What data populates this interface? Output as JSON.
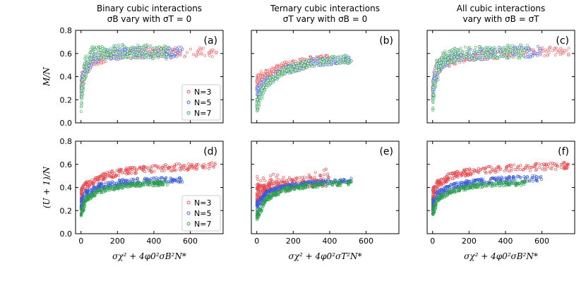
{
  "chart_data": {
    "type": "scatter",
    "column_titles": [
      [
        "Binary cubic interactions",
        "σB vary with σT = 0"
      ],
      [
        "Ternary cubic interactions",
        "σT vary with σB = 0"
      ],
      [
        "All cubic interactions",
        "vary with σB = σT"
      ]
    ],
    "x_labels": [
      "σχ² + 4φ0²σB²N*",
      "σχ² + 4φ0²σT²N*",
      "σχ² + 4φ0²σB²N*"
    ],
    "y_labels": [
      "M/N",
      "(U + 1)/N"
    ],
    "panel_labels": [
      "(a)",
      "(b)",
      "(c)",
      "(d)",
      "(e)",
      "(f)"
    ],
    "x_ticks": [
      "0",
      "200",
      "400",
      "600"
    ],
    "y_ticks": [
      "0.0",
      "0.2",
      "0.4",
      "0.6",
      "0.8"
    ],
    "xlim": [
      -30,
      780
    ],
    "ylim": [
      0.0,
      0.8
    ],
    "series_colors": [
      "#e8474c",
      "#3b5bdb",
      "#2e9e4f"
    ],
    "legend": {
      "placement": "lower-right",
      "entries": [
        "N=3",
        "N=5",
        "N=7"
      ]
    },
    "panels": [
      {
        "label": "(a)",
        "row": 0,
        "col": 0,
        "fill": "light",
        "series": [
          {
            "name": "N=3",
            "xmax": 750,
            "trend": [
              [
                0,
                0.34
              ],
              [
                20,
                0.44
              ],
              [
                60,
                0.52
              ],
              [
                150,
                0.58
              ],
              [
                300,
                0.6
              ],
              [
                500,
                0.61
              ],
              [
                750,
                0.61
              ]
            ],
            "spread": 0.04
          },
          {
            "name": "N=5",
            "xmax": 560,
            "trend": [
              [
                0,
                0.3
              ],
              [
                20,
                0.45
              ],
              [
                60,
                0.55
              ],
              [
                150,
                0.6
              ],
              [
                300,
                0.61
              ],
              [
                560,
                0.61
              ]
            ],
            "spread": 0.05
          },
          {
            "name": "N=7",
            "xmax": 480,
            "trend": [
              [
                0,
                0.2
              ],
              [
                20,
                0.48
              ],
              [
                60,
                0.6
              ],
              [
                150,
                0.62
              ],
              [
                300,
                0.62
              ],
              [
                480,
                0.61
              ]
            ],
            "spread": 0.06
          }
        ]
      },
      {
        "label": "(b)",
        "row": 0,
        "col": 1,
        "fill": "light",
        "series": [
          {
            "name": "N=3",
            "xmax": 400,
            "trend": [
              [
                0,
                0.35
              ],
              [
                50,
                0.42
              ],
              [
                150,
                0.49
              ],
              [
                300,
                0.54
              ],
              [
                400,
                0.56
              ]
            ],
            "spread": 0.035
          },
          {
            "name": "N=5",
            "xmax": 520,
            "trend": [
              [
                0,
                0.25
              ],
              [
                50,
                0.36
              ],
              [
                150,
                0.45
              ],
              [
                300,
                0.52
              ],
              [
                520,
                0.55
              ]
            ],
            "spread": 0.035
          },
          {
            "name": "N=7",
            "xmax": 520,
            "trend": [
              [
                0,
                0.15
              ],
              [
                50,
                0.33
              ],
              [
                150,
                0.45
              ],
              [
                300,
                0.52
              ],
              [
                520,
                0.56
              ]
            ],
            "spread": 0.035
          }
        ]
      },
      {
        "label": "(c)",
        "row": 0,
        "col": 2,
        "fill": "light",
        "series": [
          {
            "name": "N=3",
            "xmax": 750,
            "trend": [
              [
                0,
                0.34
              ],
              [
                20,
                0.44
              ],
              [
                60,
                0.51
              ],
              [
                150,
                0.56
              ],
              [
                300,
                0.59
              ],
              [
                500,
                0.61
              ],
              [
                750,
                0.62
              ]
            ],
            "spread": 0.04
          },
          {
            "name": "N=5",
            "xmax": 600,
            "trend": [
              [
                0,
                0.28
              ],
              [
                20,
                0.44
              ],
              [
                60,
                0.53
              ],
              [
                150,
                0.58
              ],
              [
                300,
                0.6
              ],
              [
                600,
                0.62
              ]
            ],
            "spread": 0.05
          },
          {
            "name": "N=7",
            "xmax": 520,
            "trend": [
              [
                0,
                0.2
              ],
              [
                20,
                0.45
              ],
              [
                60,
                0.56
              ],
              [
                150,
                0.6
              ],
              [
                300,
                0.61
              ],
              [
                520,
                0.62
              ]
            ],
            "spread": 0.06
          }
        ]
      },
      {
        "label": "(d)",
        "row": 1,
        "col": 0,
        "fill": "dark",
        "series": [
          {
            "name": "N=3",
            "xmax": 750,
            "trend": [
              [
                0,
                0.33
              ],
              [
                30,
                0.42
              ],
              [
                100,
                0.49
              ],
              [
                250,
                0.54
              ],
              [
                450,
                0.57
              ],
              [
                750,
                0.59
              ]
            ],
            "spread": 0.03
          },
          {
            "name": "N=5",
            "xmax": 560,
            "trend": [
              [
                0,
                0.25
              ],
              [
                30,
                0.35
              ],
              [
                100,
                0.41
              ],
              [
                250,
                0.45
              ],
              [
                400,
                0.46
              ],
              [
                560,
                0.47
              ]
            ],
            "spread": 0.025
          },
          {
            "name": "N=7",
            "xmax": 480,
            "trend": [
              [
                0,
                0.18
              ],
              [
                30,
                0.3
              ],
              [
                100,
                0.37
              ],
              [
                250,
                0.42
              ],
              [
                480,
                0.44
              ]
            ],
            "spread": 0.02
          }
        ]
      },
      {
        "label": "(e)",
        "row": 1,
        "col": 1,
        "fill": "dark",
        "series": [
          {
            "name": "N=3",
            "xmax": 400,
            "trend": [
              [
                0,
                0.34
              ],
              [
                50,
                0.39
              ],
              [
                150,
                0.42
              ],
              [
                300,
                0.45
              ],
              [
                400,
                0.46
              ]
            ],
            "spread": 0.05
          },
          {
            "name": "N=5",
            "xmax": 520,
            "trend": [
              [
                0,
                0.24
              ],
              [
                50,
                0.35
              ],
              [
                150,
                0.41
              ],
              [
                300,
                0.44
              ],
              [
                520,
                0.46
              ]
            ],
            "spread": 0.02
          },
          {
            "name": "N=7",
            "xmax": 520,
            "trend": [
              [
                0,
                0.15
              ],
              [
                50,
                0.3
              ],
              [
                150,
                0.38
              ],
              [
                300,
                0.42
              ],
              [
                520,
                0.44
              ]
            ],
            "spread": 0.02
          }
        ]
      },
      {
        "label": "(f)",
        "row": 1,
        "col": 2,
        "fill": "dark",
        "series": [
          {
            "name": "N=3",
            "xmax": 750,
            "trend": [
              [
                0,
                0.34
              ],
              [
                30,
                0.43
              ],
              [
                100,
                0.5
              ],
              [
                250,
                0.55
              ],
              [
                450,
                0.57
              ],
              [
                750,
                0.59
              ]
            ],
            "spread": 0.03
          },
          {
            "name": "N=5",
            "xmax": 600,
            "trend": [
              [
                0,
                0.25
              ],
              [
                30,
                0.35
              ],
              [
                100,
                0.41
              ],
              [
                250,
                0.45
              ],
              [
                400,
                0.47
              ],
              [
                600,
                0.48
              ]
            ],
            "spread": 0.025
          },
          {
            "name": "N=7",
            "xmax": 520,
            "trend": [
              [
                0,
                0.18
              ],
              [
                30,
                0.3
              ],
              [
                100,
                0.37
              ],
              [
                250,
                0.42
              ],
              [
                520,
                0.44
              ]
            ],
            "spread": 0.02
          }
        ]
      }
    ]
  }
}
